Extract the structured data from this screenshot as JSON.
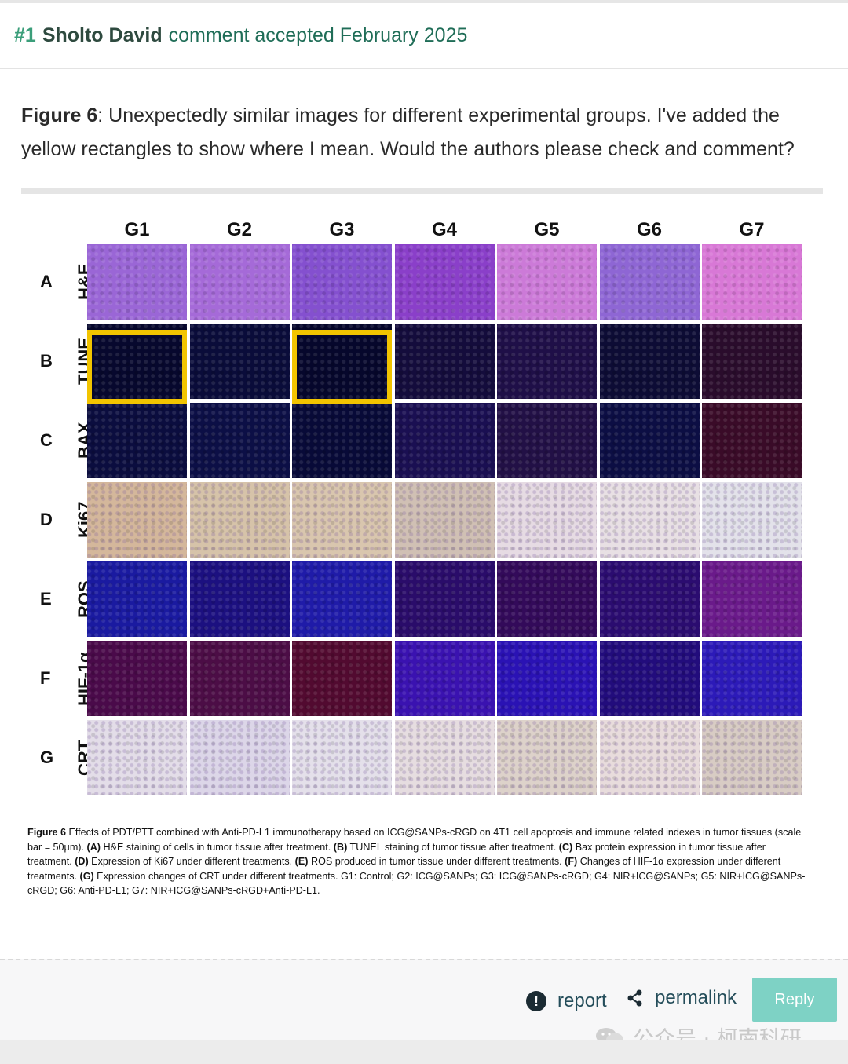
{
  "comment": {
    "number": "#1",
    "author": "Sholto David",
    "status": "comment accepted February 2025"
  },
  "body": {
    "figure_ref": "Figure 6",
    "text": ": Unexpectedly similar images for different experimental groups. I've added the yellow rectangles to show where I mean. Would the authors please check and comment?"
  },
  "figure": {
    "columns": [
      "G1",
      "G2",
      "G3",
      "G4",
      "G5",
      "G6",
      "G7"
    ],
    "rows": [
      {
        "letter": "A",
        "label": "H&E"
      },
      {
        "letter": "B",
        "label": "TUNE"
      },
      {
        "letter": "C",
        "label": "BAX"
      },
      {
        "letter": "D",
        "label": "Ki67"
      },
      {
        "letter": "E",
        "label": "ROS"
      },
      {
        "letter": "F",
        "label": "HIF-1α"
      },
      {
        "letter": "G",
        "label": "CRT"
      }
    ],
    "tile_colors": [
      [
        "#9a66d6",
        "#a56ad8",
        "#8450cf",
        "#8a3fc9",
        "#cc7ad8",
        "#8e66d4",
        "#d878d6"
      ],
      [
        "#07082e",
        "#0a0c3a",
        "#06072c",
        "#140c3c",
        "#1f0f48",
        "#0d0c35",
        "#2a0c2c"
      ],
      [
        "#0b0d3f",
        "#0c0f46",
        "#080a38",
        "#1a0f52",
        "#221046",
        "#0c0e44",
        "#3a0b28"
      ],
      [
        "#d4b79b",
        "#d6c3a9",
        "#d9c6ae",
        "#d0c0b4",
        "#e6dbe3",
        "#e8e0e4",
        "#e3e2ea"
      ],
      [
        "#1a1aa0",
        "#1c1080",
        "#1f1ba8",
        "#2a0c6a",
        "#330a5a",
        "#2b0c70",
        "#6a1a8a"
      ],
      [
        "#4a0a4a",
        "#4c0d46",
        "#520a30",
        "#3a12b0",
        "#2a12b4",
        "#220c7c",
        "#2c1ab8"
      ],
      [
        "#e3dde8",
        "#dcd6e8",
        "#e4e0ea",
        "#e6dde0",
        "#ddd2ca",
        "#e8dcdc",
        "#d8ccc4"
      ]
    ],
    "highlighted": [
      [
        1,
        0
      ],
      [
        1,
        2
      ]
    ],
    "highlight_color": "#f2c400",
    "caption_lead": "Figure 6",
    "caption_text": " Effects of PDT/PTT combined with Anti-PD-L1 immunotherapy based on ICG@SANPs-cRGD on 4T1 cell apoptosis and immune related indexes in tumor tissues (scale bar = 50μm). ",
    "caption_a": "(A)",
    "caption_a_text": " H&E staining of cells in tumor tissue after treatment. ",
    "caption_b": "(B)",
    "caption_b_text": " TUNEL staining of tumor tissue after treatment. ",
    "caption_c": "(C)",
    "caption_c_text": " Bax protein expression in tumor tissue after treatment. ",
    "caption_d": "(D)",
    "caption_d_text": " Expression of Ki67 under different treatments. ",
    "caption_e": "(E)",
    "caption_e_text": " ROS produced in tumor tissue under different treatments. ",
    "caption_f": "(F)",
    "caption_f_text": " Changes of HIF-1α expression under different treatments. ",
    "caption_g": "(G)",
    "caption_g_text": " Expression changes of CRT under different treatments. G1: Control; G2: ICG@SANPs; G3: ICG@SANPs-cRGD; G4: NIR+ICG@SANPs; G5: NIR+ICG@SANPs-cRGD; G6: Anti-PD-L1; G7: NIR+ICG@SANPs-cRGD+Anti-PD-L1."
  },
  "actions": {
    "report_label": "report",
    "permalink_label": "permalink",
    "reply_label": "Reply"
  },
  "watermark": {
    "text": "公众号 · 柯南科研"
  },
  "colors": {
    "accent_green": "#3b9e7a",
    "reply_bg": "#7ed2c5",
    "link_color": "#244d5a"
  }
}
